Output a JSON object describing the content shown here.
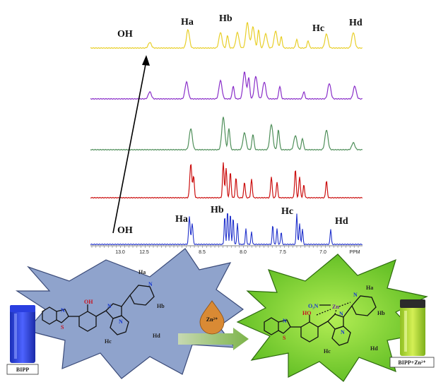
{
  "spectra": {
    "peak_labels_top": [
      "OH",
      "Ha",
      "Hb",
      "Hc",
      "Hd"
    ],
    "peak_labels_bottom": [
      "OH",
      "Ha",
      "Hb",
      "Hc",
      "Hd"
    ],
    "axis_ticks": [
      "13.0",
      "12.5",
      "8.5",
      "8.0",
      "7.5",
      "7.0"
    ],
    "axis_unit": "PPM",
    "trace_colors": [
      "#e8cf2a",
      "#8a2fc9",
      "#4f8f5a",
      "#cc1111",
      "#2233cc"
    ]
  },
  "left_structure": {
    "sample_label": "BIPP",
    "atom_labels": {
      "n1": "N",
      "s": "S",
      "oh": "OH",
      "n2": "N",
      "n3": "N",
      "n4": "N",
      "ha": "Ha",
      "hb": "Hb",
      "hc": "Hc",
      "hd": "Hd"
    }
  },
  "reagent": {
    "label": "Zn²⁺"
  },
  "right_structure": {
    "sample_label": "BIPP+Zn²⁺",
    "atom_labels": {
      "no3": "O₃N",
      "zn": "Zn",
      "ho": "HO",
      "n1": "N",
      "s": "S",
      "n2": "N",
      "n3": "N",
      "n4": "N",
      "ha": "Ha",
      "hb": "Hb",
      "hc": "Hc",
      "hd": "Hd"
    }
  },
  "colors": {
    "left_burst": "#8fa3cc",
    "right_burst": "#7bd12e",
    "arrow_shaft": "#9cc47a",
    "vial_left": "#3348d8",
    "vial_right": "#b9e03a",
    "drop": "#d98a34"
  }
}
